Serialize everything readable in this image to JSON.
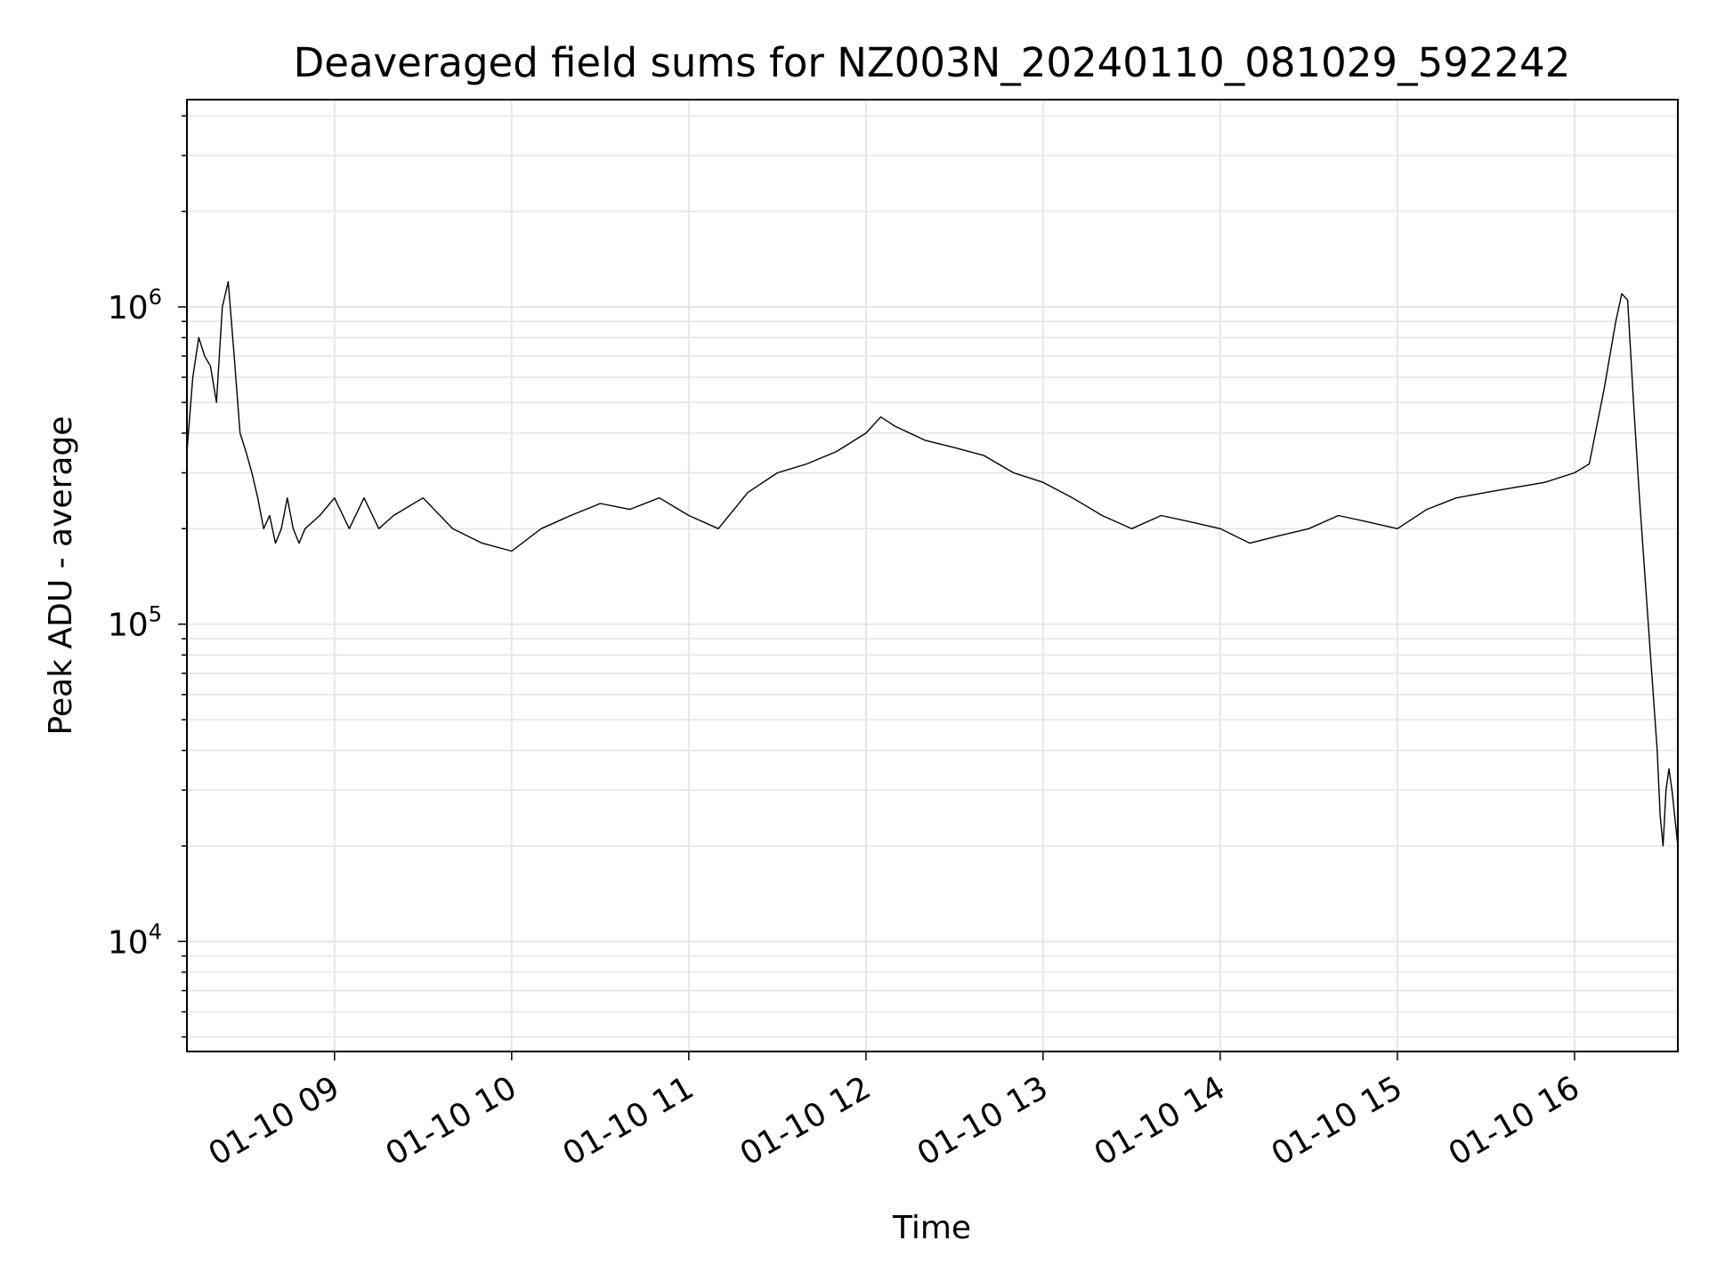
{
  "chart_data": {
    "type": "line",
    "title": "Deaveraged field sums for NZ003N_20240110_081029_592242",
    "xlabel": "Time",
    "ylabel": "Peak ADU - average",
    "x_start": "2024-01-10 08:10",
    "x_end": "2024-01-10 16:35",
    "xlim": [
      "2024-01-10 08:10",
      "2024-01-10 16:35"
    ],
    "x_ticks": [
      "01-10 09",
      "01-10 10",
      "01-10 11",
      "01-10 12",
      "01-10 13",
      "01-10 14",
      "01-10 15",
      "01-10 16"
    ],
    "y_scale": "log",
    "ylim": [
      4500,
      4500000
    ],
    "y_ticks": [
      {
        "value": 10000,
        "base": "10",
        "exp": "4"
      },
      {
        "value": 100000,
        "base": "10",
        "exp": "5"
      },
      {
        "value": 1000000,
        "base": "10",
        "exp": "6"
      }
    ],
    "grid": true,
    "line_color": "#000000",
    "grid_color": "#e6e6e6",
    "series": [
      {
        "x": [
          "08:10",
          "08:12",
          "08:14",
          "08:16",
          "08:18",
          "08:20",
          "08:22",
          "08:24",
          "08:26",
          "08:28",
          "08:30",
          "08:32",
          "08:34",
          "08:36",
          "08:38",
          "08:40",
          "08:42",
          "08:44",
          "08:46",
          "08:48",
          "08:50",
          "08:55",
          "09:00",
          "09:05",
          "09:10",
          "09:15",
          "09:20",
          "09:30",
          "09:40",
          "09:50",
          "10:00",
          "10:10",
          "10:20",
          "10:30",
          "10:40",
          "10:50",
          "11:00",
          "11:10",
          "11:20",
          "11:30",
          "11:40",
          "11:50",
          "12:00",
          "12:05",
          "12:10",
          "12:20",
          "12:30",
          "12:40",
          "12:50",
          "13:00",
          "13:10",
          "13:20",
          "13:30",
          "13:40",
          "13:50",
          "14:00",
          "14:10",
          "14:20",
          "14:30",
          "14:40",
          "14:50",
          "15:00",
          "15:10",
          "15:20",
          "15:30",
          "15:40",
          "15:50",
          "16:00",
          "16:05",
          "16:10",
          "16:14",
          "16:16",
          "16:18",
          "16:20",
          "16:22",
          "16:25",
          "16:28",
          "16:29",
          "16:30",
          "16:31",
          "16:32",
          "16:33",
          "16:35"
        ],
        "values": [
          350000,
          600000,
          800000,
          700000,
          650000,
          500000,
          1000000,
          1200000,
          700000,
          400000,
          350000,
          300000,
          250000,
          200000,
          220000,
          180000,
          200000,
          250000,
          200000,
          180000,
          200000,
          220000,
          250000,
          200000,
          250000,
          200000,
          220000,
          250000,
          200000,
          180000,
          170000,
          200000,
          220000,
          240000,
          230000,
          250000,
          220000,
          200000,
          260000,
          300000,
          320000,
          350000,
          400000,
          450000,
          420000,
          380000,
          360000,
          340000,
          300000,
          280000,
          250000,
          220000,
          200000,
          220000,
          210000,
          200000,
          180000,
          190000,
          200000,
          220000,
          210000,
          200000,
          230000,
          250000,
          260000,
          270000,
          280000,
          300000,
          320000,
          550000,
          900000,
          1100000,
          1050000,
          500000,
          250000,
          100000,
          40000,
          25000,
          20000,
          30000,
          35000,
          30000,
          20000
        ]
      }
    ]
  }
}
